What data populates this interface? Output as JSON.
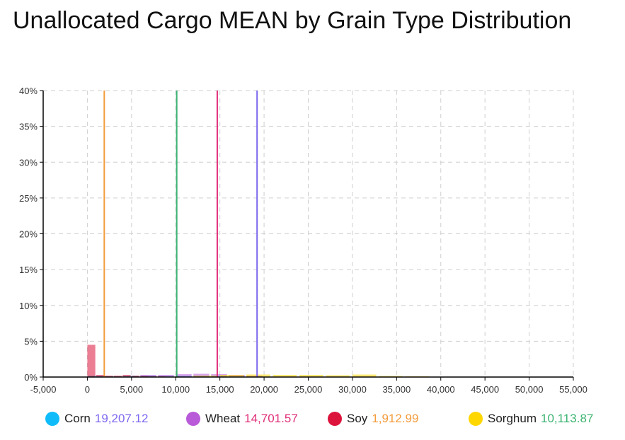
{
  "title": "Unallocated Cargo MEAN by Grain Type Distribution",
  "chart_data": {
    "type": "histogram",
    "title": "Unallocated Cargo MEAN by Grain Type Distribution",
    "xlim": [
      -5000,
      55000
    ],
    "ylim": [
      0,
      40
    ],
    "x_ticks": [
      -5000,
      0,
      5000,
      10000,
      15000,
      20000,
      25000,
      30000,
      35000,
      40000,
      45000,
      50000,
      55000
    ],
    "x_tick_labels": [
      "-5,000",
      "0",
      "5,000",
      "10,000",
      "15,000",
      "20,000",
      "25,000",
      "30,000",
      "35,000",
      "40,000",
      "45,000",
      "50,000",
      "55,000"
    ],
    "y_ticks": [
      0,
      5,
      10,
      15,
      20,
      25,
      30,
      35,
      40
    ],
    "y_tick_labels": [
      "0%",
      "5%",
      "10%",
      "15%",
      "20%",
      "25%",
      "30%",
      "35%",
      "40%"
    ],
    "grid": true,
    "legend_position": "bottom",
    "series": [
      {
        "name": "Corn",
        "mean": 19207.12,
        "mean_label": "19,207.12",
        "dot_color": "#0fbcf9",
        "line_color": "#7b68ee",
        "mean_text_color": "#7b68ee",
        "bins_x": [
          0,
          2000,
          4000,
          6000,
          8000,
          10000,
          12000,
          14000,
          16000,
          18000
        ],
        "bins_y": [
          0.2,
          0.1,
          0.2,
          0.2,
          0.15,
          0.2,
          0.2,
          0.2,
          0.15,
          0.1
        ]
      },
      {
        "name": "Wheat",
        "mean": 14701.57,
        "mean_label": "14,701.57",
        "dot_color": "#b95ad9",
        "line_color": "#e0307a",
        "mean_text_color": "#e0307a",
        "bins_x": [
          6000,
          8000,
          10000,
          12000,
          14000,
          16000,
          18000
        ],
        "bins_y": [
          0.3,
          0.3,
          0.4,
          0.45,
          0.4,
          0.3,
          0.2
        ]
      },
      {
        "name": "Soy",
        "mean": 1912.99,
        "mean_label": "1,912.99",
        "dot_color": "#dc143c",
        "line_color": "#f39c3c",
        "mean_text_color": "#f39c3c",
        "bins_x": [
          0,
          1000,
          2000,
          3000,
          4000,
          5000,
          6000,
          7000,
          8000
        ],
        "bins_y": [
          4.5,
          0.3,
          0.2,
          0.2,
          0.3,
          0.2,
          0.15,
          0.1,
          0.1
        ]
      },
      {
        "name": "Sorghum",
        "mean": 10113.87,
        "mean_label": "10,113.87",
        "dot_color": "#ffd700",
        "line_color": "#3cb371",
        "mean_text_color": "#3cb371",
        "bins_x": [
          12000,
          15000,
          18000,
          21000,
          24000,
          27000,
          30000,
          33000,
          36000
        ],
        "bins_y": [
          0.2,
          0.3,
          0.35,
          0.3,
          0.3,
          0.25,
          0.35,
          0.15,
          0.1
        ]
      }
    ]
  }
}
